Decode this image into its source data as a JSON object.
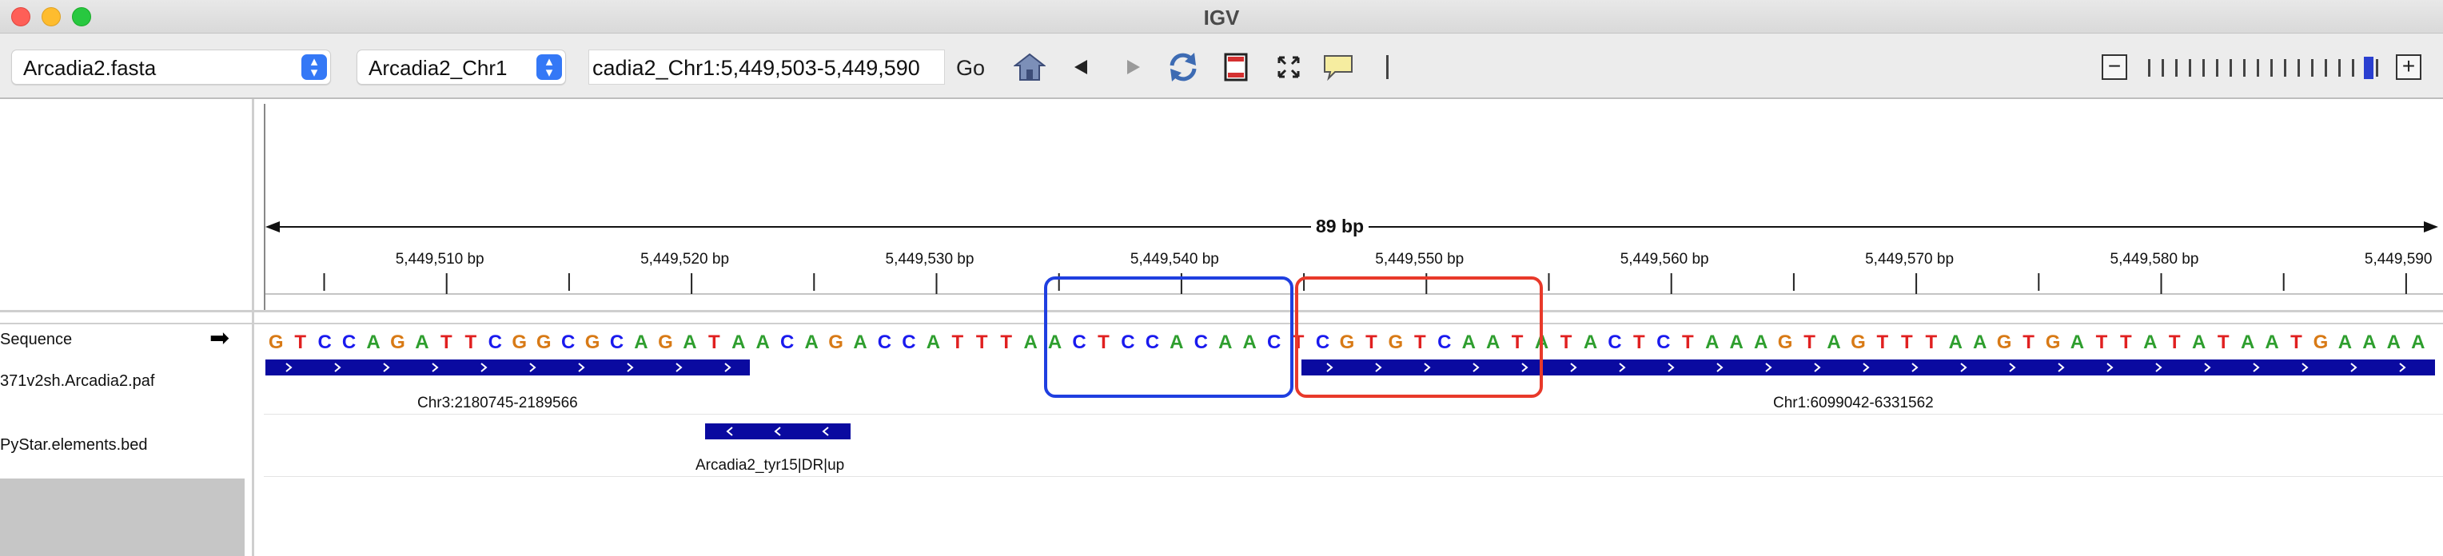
{
  "window": {
    "title": "IGV"
  },
  "toolbar": {
    "genome_value": "Arcadia2.fasta",
    "chromosome_value": "Arcadia2_Chr1",
    "locus_value": "cadia2_Chr1:5,449,503-5,449,590",
    "go_label": "Go"
  },
  "ruler": {
    "span_label": "89 bp",
    "ticks": [
      "5,449,510 bp",
      "5,449,520 bp",
      "5,449,530 bp",
      "5,449,540 bp",
      "5,449,550 bp",
      "5,449,560 bp",
      "5,449,570 bp",
      "5,449,580 bp",
      "5,449,590"
    ]
  },
  "tracks": {
    "sequence_name": "Sequence",
    "paf_name": "371v2sh.Arcadia2.paf",
    "bed_name": "PyStar.elements.bed",
    "sequence": "GTCCAGATTCGGCGCAGATAACAGACCATTTAACTCCACAACTCGTGTCAATATACTCTAAAGTAGTTTAAGTGATTATATAATGAAAA",
    "paf_features": [
      {
        "label": "Chr3:2180745-2189566",
        "strand": "+"
      },
      {
        "label": "Chr1:6099042-6331562",
        "strand": "+"
      }
    ],
    "bed_features": [
      {
        "label": "Arcadia2_tyr15|DR|up",
        "strand": "-"
      }
    ]
  },
  "colors": {
    "A": "#2e9e2e",
    "C": "#1a1aee",
    "G": "#d87a16",
    "T": "#e02020",
    "feature": "#0a0aa0",
    "highlight_blue": "#1f3fe0",
    "highlight_red": "#e8392a"
  },
  "icons": [
    "home-icon",
    "back-arrow-icon",
    "forward-arrow-icon",
    "refresh-icon",
    "region-of-interest-icon",
    "resize-icon",
    "popup-text-icon",
    "ruler-line-icon",
    "zoom-out-icon",
    "zoom-in-icon",
    "sequence-strand-arrow-icon"
  ]
}
